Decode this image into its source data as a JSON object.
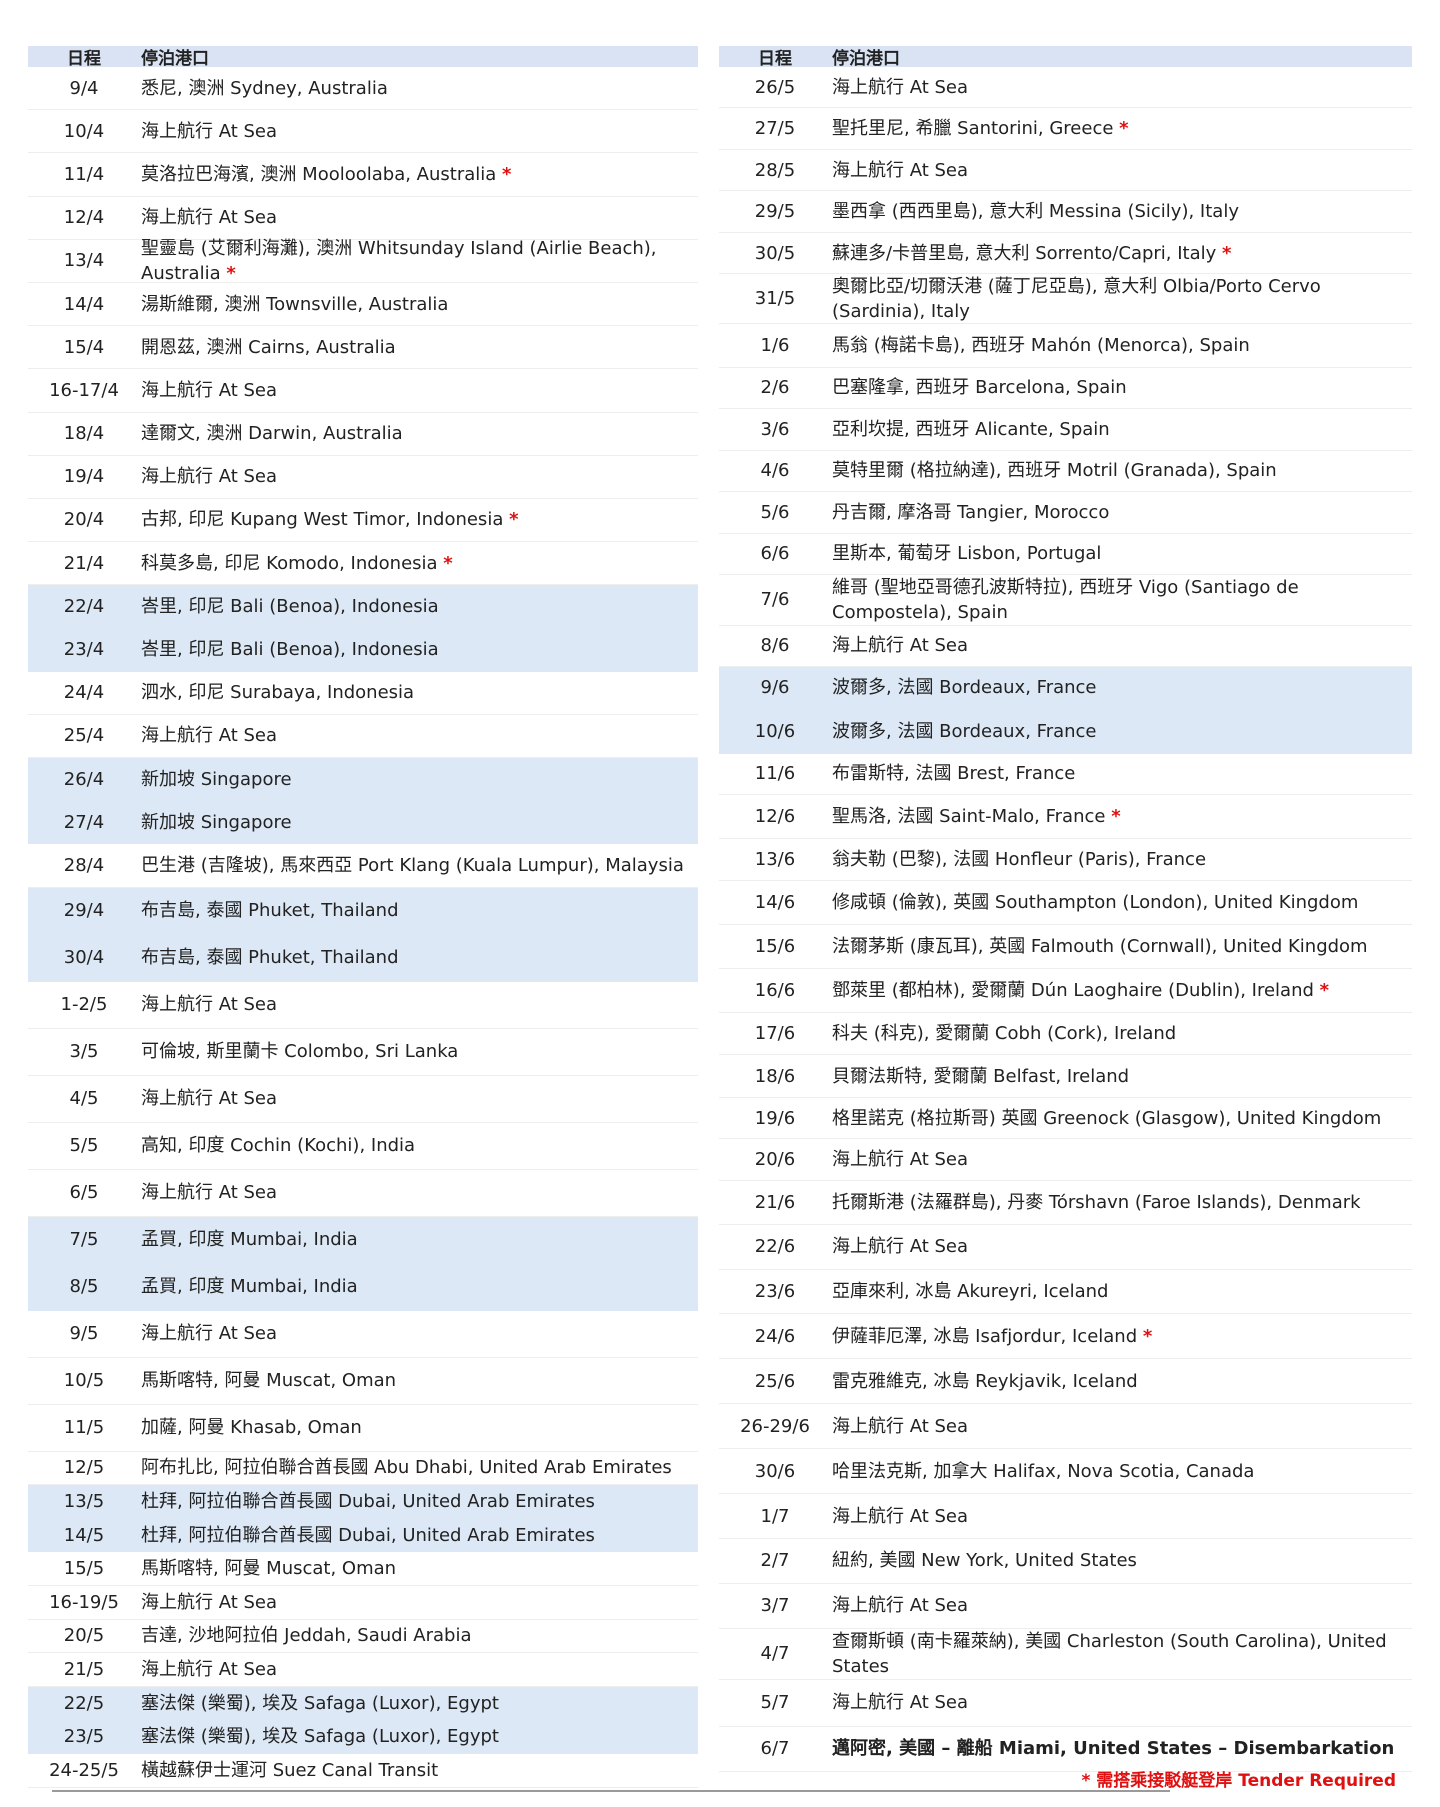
{
  "header": {
    "date_label": "日程",
    "port_label": "停泊港口"
  },
  "colors": {
    "header_bg": "#d9e3f3",
    "highlight_bg": "#dce8f5",
    "tender_star": "#e01010"
  },
  "left": [
    {
      "date": "9/4",
      "port": "悉尼, 澳洲 Sydney, Australia"
    },
    {
      "date": "10/4",
      "port": "海上航行 At Sea"
    },
    {
      "date": "11/4",
      "port": "莫洛拉巴海濱, 澳洲 Mooloolaba, Australia",
      "star": true
    },
    {
      "date": "12/4",
      "port": "海上航行 At Sea"
    },
    {
      "date": "13/4",
      "port": "聖靈島 (艾爾利海灘), 澳洲 Whitsunday Island (Airlie Beach), Australia",
      "star": true
    },
    {
      "date": "14/4",
      "port": "湯斯維爾, 澳洲 Townsville, Australia"
    },
    {
      "date": "15/4",
      "port": "開恩茲, 澳洲 Cairns, Australia"
    },
    {
      "date": "16-17/4",
      "port": "海上航行 At Sea"
    },
    {
      "date": "18/4",
      "port": "達爾文, 澳洲 Darwin, Australia"
    },
    {
      "date": "19/4",
      "port": "海上航行 At Sea"
    },
    {
      "date": "20/4",
      "port": "古邦, 印尼 Kupang West Timor, Indonesia",
      "star": true
    },
    {
      "date": "21/4",
      "port": "科莫多島, 印尼 Komodo, Indonesia",
      "star": true
    },
    {
      "date": "22/4",
      "port": "峇里, 印尼 Bali (Benoa), Indonesia",
      "highlight": true
    },
    {
      "date": "23/4",
      "port": "峇里, 印尼 Bali (Benoa), Indonesia",
      "highlight": true
    },
    {
      "date": "24/4",
      "port": "泗水, 印尼 Surabaya, Indonesia"
    },
    {
      "date": "25/4",
      "port": "海上航行 At Sea"
    },
    {
      "date": "26/4",
      "port": "新加坡 Singapore",
      "highlight": true
    },
    {
      "date": "27/4",
      "port": "新加坡 Singapore",
      "highlight": true
    },
    {
      "date": "28/4",
      "port": "巴生港 (吉隆坡), 馬來西亞 Port Klang (Kuala Lumpur), Malaysia"
    },
    {
      "date": "29/4",
      "port": "布吉島, 泰國 Phuket, Thailand",
      "highlight": true
    },
    {
      "date": "30/4",
      "port": "布吉島, 泰國 Phuket, Thailand",
      "highlight": true
    },
    {
      "date": "1-2/5",
      "port": "海上航行 At Sea"
    },
    {
      "date": "3/5",
      "port": "可倫坡, 斯里蘭卡 Colombo, Sri Lanka"
    },
    {
      "date": "4/5",
      "port": "海上航行 At Sea"
    },
    {
      "date": "5/5",
      "port": "高知, 印度 Cochin (Kochi), India"
    },
    {
      "date": "6/5",
      "port": "海上航行 At Sea"
    },
    {
      "date": "7/5",
      "port": "孟買, 印度 Mumbai, India",
      "highlight": true
    },
    {
      "date": "8/5",
      "port": "孟買, 印度 Mumbai, India",
      "highlight": true
    },
    {
      "date": "9/5",
      "port": "海上航行 At Sea"
    },
    {
      "date": "10/5",
      "port": "馬斯喀特, 阿曼 Muscat, Oman"
    },
    {
      "date": "11/5",
      "port": "加薩, 阿曼 Khasab, Oman"
    },
    {
      "date": "12/5",
      "port": "阿布扎比, 阿拉伯聯合酋長國 Abu Dhabi, United Arab Emirates"
    },
    {
      "date": "13/5",
      "port": "杜拜, 阿拉伯聯合酋長國 Dubai, United Arab Emirates",
      "highlight": true
    },
    {
      "date": "14/5",
      "port": "杜拜, 阿拉伯聯合酋長國 Dubai, United Arab Emirates",
      "highlight": true
    },
    {
      "date": "15/5",
      "port": "馬斯喀特, 阿曼 Muscat, Oman"
    },
    {
      "date": "16-19/5",
      "port": "海上航行 At Sea"
    },
    {
      "date": "20/5",
      "port": "吉達, 沙地阿拉伯 Jeddah, Saudi Arabia"
    },
    {
      "date": "21/5",
      "port": "海上航行 At Sea"
    },
    {
      "date": "22/5",
      "port": "塞法傑 (樂蜀), 埃及 Safaga (Luxor), Egypt",
      "highlight": true
    },
    {
      "date": "23/5",
      "port": "塞法傑 (樂蜀), 埃及 Safaga (Luxor), Egypt",
      "highlight": true
    },
    {
      "date": "24-25/5",
      "port": "橫越蘇伊士運河 Suez Canal Transit"
    }
  ],
  "right": [
    {
      "date": "26/5",
      "port": "海上航行 At Sea"
    },
    {
      "date": "27/5",
      "port": "聖托里尼, 希臘 Santorini, Greece",
      "star": true
    },
    {
      "date": "28/5",
      "port": "海上航行 At Sea"
    },
    {
      "date": "29/5",
      "port": "墨西拿 (西西里島), 意大利 Messina (Sicily), Italy"
    },
    {
      "date": "30/5",
      "port": "蘇連多/卡普里島, 意大利 Sorrento/Capri, Italy",
      "star": true
    },
    {
      "date": "31/5",
      "port": "奧爾比亞/切爾沃港 (薩丁尼亞島), 意大利 Olbia/Porto Cervo (Sardinia), Italy"
    },
    {
      "date": "1/6",
      "port": "馬翁 (梅諾卡島), 西班牙 Mahón (Menorca), Spain"
    },
    {
      "date": "2/6",
      "port": "巴塞隆拿, 西班牙 Barcelona, Spain"
    },
    {
      "date": "3/6",
      "port": "亞利坎提, 西班牙 Alicante, Spain"
    },
    {
      "date": "4/6",
      "port": "莫特里爾 (格拉納達), 西班牙 Motril (Granada), Spain"
    },
    {
      "date": "5/6",
      "port": "丹吉爾, 摩洛哥 Tangier, Morocco"
    },
    {
      "date": "6/6",
      "port": "里斯本, 葡萄牙 Lisbon, Portugal"
    },
    {
      "date": "7/6",
      "port": "維哥 (聖地亞哥德孔波斯特拉), 西班牙 Vigo (Santiago de Compostela), Spain"
    },
    {
      "date": "8/6",
      "port": "海上航行 At Sea"
    },
    {
      "date": "9/6",
      "port": "波爾多, 法國 Bordeaux, France",
      "highlight": true
    },
    {
      "date": "10/6",
      "port": "波爾多, 法國 Bordeaux, France",
      "highlight": true
    },
    {
      "date": "11/6",
      "port": "布雷斯特, 法國 Brest, France"
    },
    {
      "date": "12/6",
      "port": "聖馬洛, 法國 Saint-Malo, France",
      "star": true
    },
    {
      "date": "13/6",
      "port": "翁夫勒 (巴黎), 法國 Honfleur (Paris), France"
    },
    {
      "date": "14/6",
      "port": "修咸頓 (倫敦), 英國 Southampton (London), United Kingdom"
    },
    {
      "date": "15/6",
      "port": "法爾茅斯 (康瓦耳), 英國 Falmouth (Cornwall), United Kingdom"
    },
    {
      "date": "16/6",
      "port": "鄧萊里 (都柏林), 愛爾蘭 Dún Laoghaire (Dublin), Ireland",
      "star": true
    },
    {
      "date": "17/6",
      "port": "科夫 (科克), 愛爾蘭 Cobh (Cork), Ireland"
    },
    {
      "date": "18/6",
      "port": "貝爾法斯特, 愛爾蘭 Belfast, Ireland"
    },
    {
      "date": "19/6",
      "port": "格里諾克 (格拉斯哥) 英國 Greenock (Glasgow), United Kingdom"
    },
    {
      "date": "20/6",
      "port": "海上航行 At Sea"
    },
    {
      "date": "21/6",
      "port": "托爾斯港 (法羅群島), 丹麥 Tórshavn (Faroe Islands), Denmark"
    },
    {
      "date": "22/6",
      "port": "海上航行 At Sea"
    },
    {
      "date": "23/6",
      "port": "亞庫來利, 冰島 Akureyri, Iceland"
    },
    {
      "date": "24/6",
      "port": "伊薩菲厄澤, 冰島 Isafjordur, Iceland",
      "star": true
    },
    {
      "date": "25/6",
      "port": "雷克雅維克, 冰島 Reykjavik, Iceland"
    },
    {
      "date": "26-29/6",
      "port": "海上航行 At Sea"
    },
    {
      "date": "30/6",
      "port": "哈里法克斯, 加拿大 Halifax, Nova Scotia, Canada"
    },
    {
      "date": "1/7",
      "port": "海上航行 At Sea"
    },
    {
      "date": "2/7",
      "port": "紐約, 美國 New York, United States"
    },
    {
      "date": "3/7",
      "port": "海上航行 At Sea"
    },
    {
      "date": "4/7",
      "port": "查爾斯頓 (南卡羅萊納), 美國 Charleston (South Carolina), United States"
    },
    {
      "date": "5/7",
      "port": "海上航行 At Sea"
    },
    {
      "date": "6/7",
      "port": "邁阿密, 美國 – 離船 Miami, United States – Disembarkation",
      "bold": true
    }
  ],
  "footnote": "* 需搭乘接駁艇登岸 Tender Required",
  "star_symbol": "*"
}
